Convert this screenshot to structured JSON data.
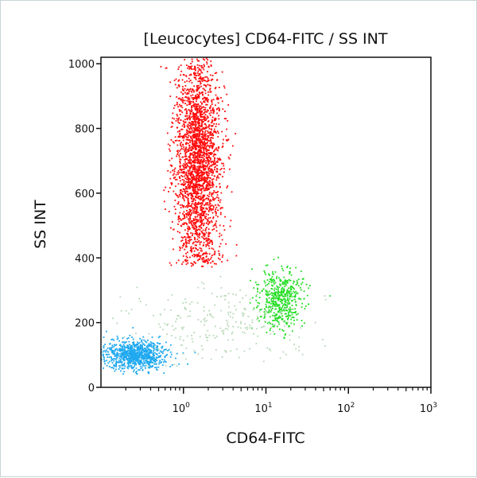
{
  "chart_data": {
    "type": "scatter",
    "title": "[Leucocytes] CD64-FITC / SS INT",
    "xlabel": "CD64-FITC",
    "ylabel": "SS INT",
    "xscale": "log",
    "xlim": [
      0.1,
      1000
    ],
    "ylim": [
      0,
      1020
    ],
    "xticks": [
      {
        "value": 1,
        "base": "10",
        "exp": "0"
      },
      {
        "value": 10,
        "base": "10",
        "exp": "1"
      },
      {
        "value": 100,
        "base": "10",
        "exp": "2"
      },
      {
        "value": 1000,
        "base": "10",
        "exp": "3"
      }
    ],
    "yticks": [
      {
        "value": 0,
        "label": "0"
      },
      {
        "value": 200,
        "label": "200"
      },
      {
        "value": 400,
        "label": "400"
      },
      {
        "value": 600,
        "label": "600"
      },
      {
        "value": 800,
        "label": "800"
      },
      {
        "value": 1000,
        "label": "1000"
      }
    ],
    "grid": false,
    "populations": [
      {
        "color": "#ff0a0a",
        "x_center": 1.5,
        "x_log_spread": 0.12,
        "y_center": 700,
        "y_spread": 170,
        "y_min": 370,
        "events": 2600
      },
      {
        "color": "#22dd22",
        "x_center": 15,
        "x_log_spread": 0.12,
        "y_center": 270,
        "y_spread": 45,
        "y_min": 150,
        "events": 500
      },
      {
        "color": "#1ea8f0",
        "x_center": 0.25,
        "x_log_spread": 0.17,
        "y_center": 100,
        "y_spread": 22,
        "y_min": 40,
        "events": 900
      },
      {
        "color": "#b8d8b8",
        "x_center": 3,
        "x_log_spread": 0.45,
        "y_center": 200,
        "y_spread": 60,
        "y_min": 60,
        "events": 250
      }
    ]
  }
}
